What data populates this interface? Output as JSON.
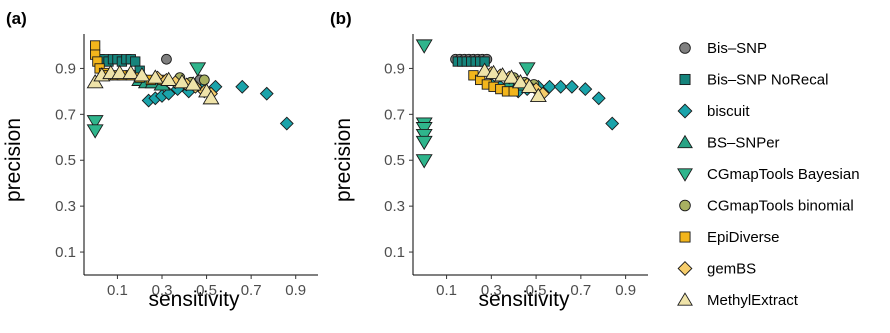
{
  "colors": {
    "Bis-SNP": "#7f7f7f",
    "Bis-SNP NoRecal": "#15847c",
    "biscuit": "#1aa3aa",
    "BS-SNPer": "#27a385",
    "CGmapTools Bayesian": "#2fb58c",
    "CGmapTools binomial": "#a8b061",
    "EpiDiverse": "#f2b51c",
    "gemBS": "#f6cd6b",
    "MethylExtract": "#efe3a9"
  },
  "legend": {
    "items": [
      {
        "name": "Bis–SNP",
        "shape": "circle",
        "color_key": "Bis-SNP"
      },
      {
        "name": "Bis–SNP NoRecal",
        "shape": "square",
        "color_key": "Bis-SNP NoRecal"
      },
      {
        "name": "biscuit",
        "shape": "diamond",
        "color_key": "biscuit"
      },
      {
        "name": "BS–SNPer",
        "shape": "triangle-up",
        "color_key": "BS-SNPer"
      },
      {
        "name": "CGmapTools Bayesian",
        "shape": "triangle-down",
        "color_key": "CGmapTools Bayesian"
      },
      {
        "name": "CGmapTools binomial",
        "shape": "circle",
        "color_key": "CGmapTools binomial"
      },
      {
        "name": "EpiDiverse",
        "shape": "square",
        "color_key": "EpiDiverse"
      },
      {
        "name": "gemBS",
        "shape": "diamond",
        "color_key": "gemBS"
      },
      {
        "name": "MethylExtract",
        "shape": "triangle-up",
        "color_key": "MethylExtract"
      }
    ]
  },
  "chart_data": [
    {
      "type": "scatter",
      "panel_label": "(a)",
      "xlabel": "sensitivity",
      "ylabel": "precision",
      "xlim": [
        -0.05,
        1.0
      ],
      "ylim": [
        0.0,
        1.05
      ],
      "xticks": [
        "0.1",
        "0.3",
        "0.5",
        "0.7",
        "0.9"
      ],
      "yticks": [
        "0.1",
        "0.3",
        "0.5",
        "0.7",
        "0.9"
      ],
      "grid": false,
      "series": [
        {
          "name": "Bis–SNP",
          "color_key": "Bis-SNP",
          "shape": "circle",
          "x": [
            0.32,
            0.47
          ],
          "y": [
            0.94,
            0.85
          ]
        },
        {
          "name": "Bis–SNP NoRecal",
          "color_key": "Bis-SNP NoRecal",
          "shape": "square",
          "x": [
            0.02,
            0.04,
            0.06,
            0.08,
            0.1,
            0.12,
            0.14,
            0.16,
            0.18,
            0.2,
            0.22
          ],
          "y": [
            0.94,
            0.94,
            0.93,
            0.94,
            0.94,
            0.93,
            0.94,
            0.94,
            0.93,
            0.89,
            0.84
          ]
        },
        {
          "name": "biscuit",
          "color_key": "biscuit",
          "shape": "diamond",
          "x": [
            0.24,
            0.27,
            0.3,
            0.33,
            0.37,
            0.42,
            0.48,
            0.54,
            0.66,
            0.77,
            0.86
          ],
          "y": [
            0.76,
            0.77,
            0.78,
            0.79,
            0.81,
            0.8,
            0.81,
            0.82,
            0.82,
            0.79,
            0.66
          ]
        },
        {
          "name": "BS–SNPer",
          "color_key": "BS-SNPer",
          "shape": "triangle-up",
          "x": [
            0.2,
            0.23,
            0.26,
            0.3
          ],
          "y": [
            0.85,
            0.84,
            0.84,
            0.83
          ]
        },
        {
          "name": "CGmapTools Bayesian",
          "color_key": "CGmapTools Bayesian",
          "shape": "triangle-down",
          "x": [
            0.0,
            0.0,
            0.46
          ],
          "y": [
            0.67,
            0.63,
            0.9
          ]
        },
        {
          "name": "CGmapTools binomial",
          "color_key": "CGmapTools binomial",
          "shape": "circle",
          "x": [
            0.38,
            0.43,
            0.49
          ],
          "y": [
            0.86,
            0.84,
            0.85
          ]
        },
        {
          "name": "EpiDiverse",
          "color_key": "EpiDiverse",
          "shape": "square",
          "x": [
            0.0,
            0.0,
            0.01,
            0.02,
            0.04,
            0.06,
            0.09,
            0.12,
            0.16,
            0.2,
            0.25,
            0.3
          ],
          "y": [
            1.0,
            0.96,
            0.93,
            0.9,
            0.88,
            0.87,
            0.87,
            0.87,
            0.87,
            0.86,
            0.85,
            0.85
          ]
        },
        {
          "name": "gemBS",
          "color_key": "gemBS",
          "shape": "diamond",
          "x": [
            0.28,
            0.32,
            0.36,
            0.41,
            0.45,
            0.49,
            0.52
          ],
          "y": [
            0.86,
            0.85,
            0.84,
            0.83,
            0.82,
            0.8,
            0.79
          ]
        },
        {
          "name": "MethylExtract",
          "color_key": "MethylExtract",
          "shape": "triangle-up",
          "x": [
            0.0,
            0.03,
            0.07,
            0.11,
            0.16,
            0.21,
            0.27,
            0.33,
            0.39,
            0.44,
            0.5,
            0.52
          ],
          "y": [
            0.84,
            0.87,
            0.88,
            0.88,
            0.88,
            0.87,
            0.86,
            0.85,
            0.84,
            0.83,
            0.8,
            0.77
          ]
        }
      ]
    },
    {
      "type": "scatter",
      "panel_label": "(b)",
      "xlabel": "sensitivity",
      "ylabel": "precision",
      "xlim": [
        -0.05,
        1.0
      ],
      "ylim": [
        0.0,
        1.05
      ],
      "xticks": [
        "0.1",
        "0.3",
        "0.5",
        "0.7",
        "0.9"
      ],
      "yticks": [
        "0.1",
        "0.3",
        "0.5",
        "0.7",
        "0.9"
      ],
      "grid": false,
      "series": [
        {
          "name": "Bis–SNP",
          "color_key": "Bis-SNP",
          "shape": "circle",
          "x": [
            0.14,
            0.16,
            0.18,
            0.2,
            0.22,
            0.24,
            0.26,
            0.28
          ],
          "y": [
            0.94,
            0.94,
            0.94,
            0.94,
            0.94,
            0.94,
            0.94,
            0.94
          ]
        },
        {
          "name": "Bis–SNP NoRecal",
          "color_key": "Bis-SNP NoRecal",
          "shape": "square",
          "x": [
            0.15,
            0.17,
            0.19,
            0.21,
            0.23,
            0.25,
            0.27
          ],
          "y": [
            0.93,
            0.93,
            0.93,
            0.93,
            0.93,
            0.93,
            0.93
          ]
        },
        {
          "name": "biscuit",
          "color_key": "biscuit",
          "shape": "diamond",
          "x": [
            0.3,
            0.34,
            0.38,
            0.42,
            0.46,
            0.51,
            0.56,
            0.61,
            0.66,
            0.72,
            0.78,
            0.84
          ],
          "y": [
            0.83,
            0.82,
            0.81,
            0.8,
            0.81,
            0.82,
            0.82,
            0.82,
            0.82,
            0.81,
            0.77,
            0.66
          ]
        },
        {
          "name": "BS–SNPer",
          "color_key": "BS-SNPer",
          "shape": "triangle-up",
          "x": [
            0.38,
            0.42
          ],
          "y": [
            0.84,
            0.83
          ]
        },
        {
          "name": "CGmapTools Bayesian",
          "color_key": "CGmapTools Bayesian",
          "shape": "triangle-down",
          "x": [
            0.0,
            0.0,
            0.0,
            0.0,
            0.0,
            0.0,
            0.46
          ],
          "y": [
            1.0,
            0.66,
            0.64,
            0.61,
            0.58,
            0.5,
            0.9
          ]
        },
        {
          "name": "CGmapTools binomial",
          "color_key": "CGmapTools binomial",
          "shape": "circle",
          "x": [
            0.4,
            0.45,
            0.49
          ],
          "y": [
            0.86,
            0.84,
            0.83
          ]
        },
        {
          "name": "EpiDiverse",
          "color_key": "EpiDiverse",
          "shape": "square",
          "x": [
            0.22,
            0.25,
            0.28,
            0.31,
            0.34,
            0.37,
            0.4
          ],
          "y": [
            0.87,
            0.85,
            0.83,
            0.82,
            0.81,
            0.8,
            0.8
          ]
        },
        {
          "name": "gemBS",
          "color_key": "gemBS",
          "shape": "diamond",
          "x": [
            0.3,
            0.34,
            0.38,
            0.42,
            0.46,
            0.5,
            0.53
          ],
          "y": [
            0.88,
            0.87,
            0.86,
            0.84,
            0.83,
            0.81,
            0.79
          ]
        },
        {
          "name": "MethylExtract",
          "color_key": "MethylExtract",
          "shape": "triangle-up",
          "x": [
            0.27,
            0.31,
            0.35,
            0.39,
            0.43,
            0.47,
            0.51
          ],
          "y": [
            0.89,
            0.88,
            0.87,
            0.86,
            0.84,
            0.82,
            0.78
          ]
        }
      ]
    }
  ]
}
